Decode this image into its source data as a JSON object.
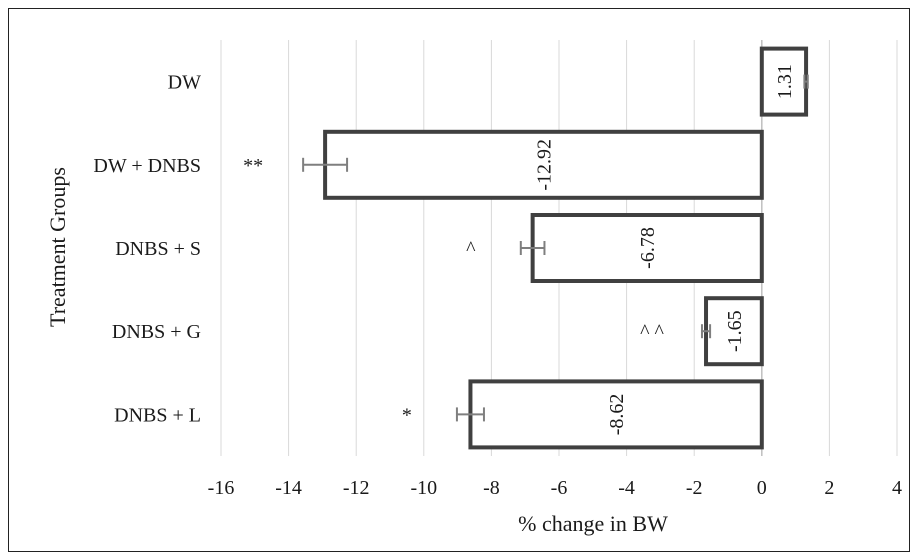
{
  "chart_data": {
    "type": "bar",
    "orientation": "horizontal",
    "title": "",
    "xlabel": "% change in BW",
    "ylabel": "Treatment Groups",
    "xlim": [
      -16,
      4
    ],
    "xticks": [
      -16,
      -14,
      -12,
      -10,
      -8,
      -6,
      -4,
      -2,
      0,
      2,
      4
    ],
    "grid": true,
    "categories": [
      "DW",
      "DW + DNBS",
      "DNBS + S",
      "DNBS + G",
      "DNBS + L"
    ],
    "values": [
      1.31,
      -12.92,
      -6.78,
      -1.65,
      -8.62
    ],
    "value_labels": [
      "1.31",
      "-12.92",
      "-6.78",
      "-1.65",
      "-8.62"
    ],
    "error": [
      0.05,
      0.65,
      0.35,
      0.12,
      0.4
    ],
    "significance": [
      "",
      "**",
      "^",
      "^ ^",
      "*"
    ],
    "colors": {
      "bar_fill": "#ffffff",
      "bar_edge": "#404040",
      "grid": "#d9d9d9",
      "error_bar": "#7f7f7f"
    }
  }
}
